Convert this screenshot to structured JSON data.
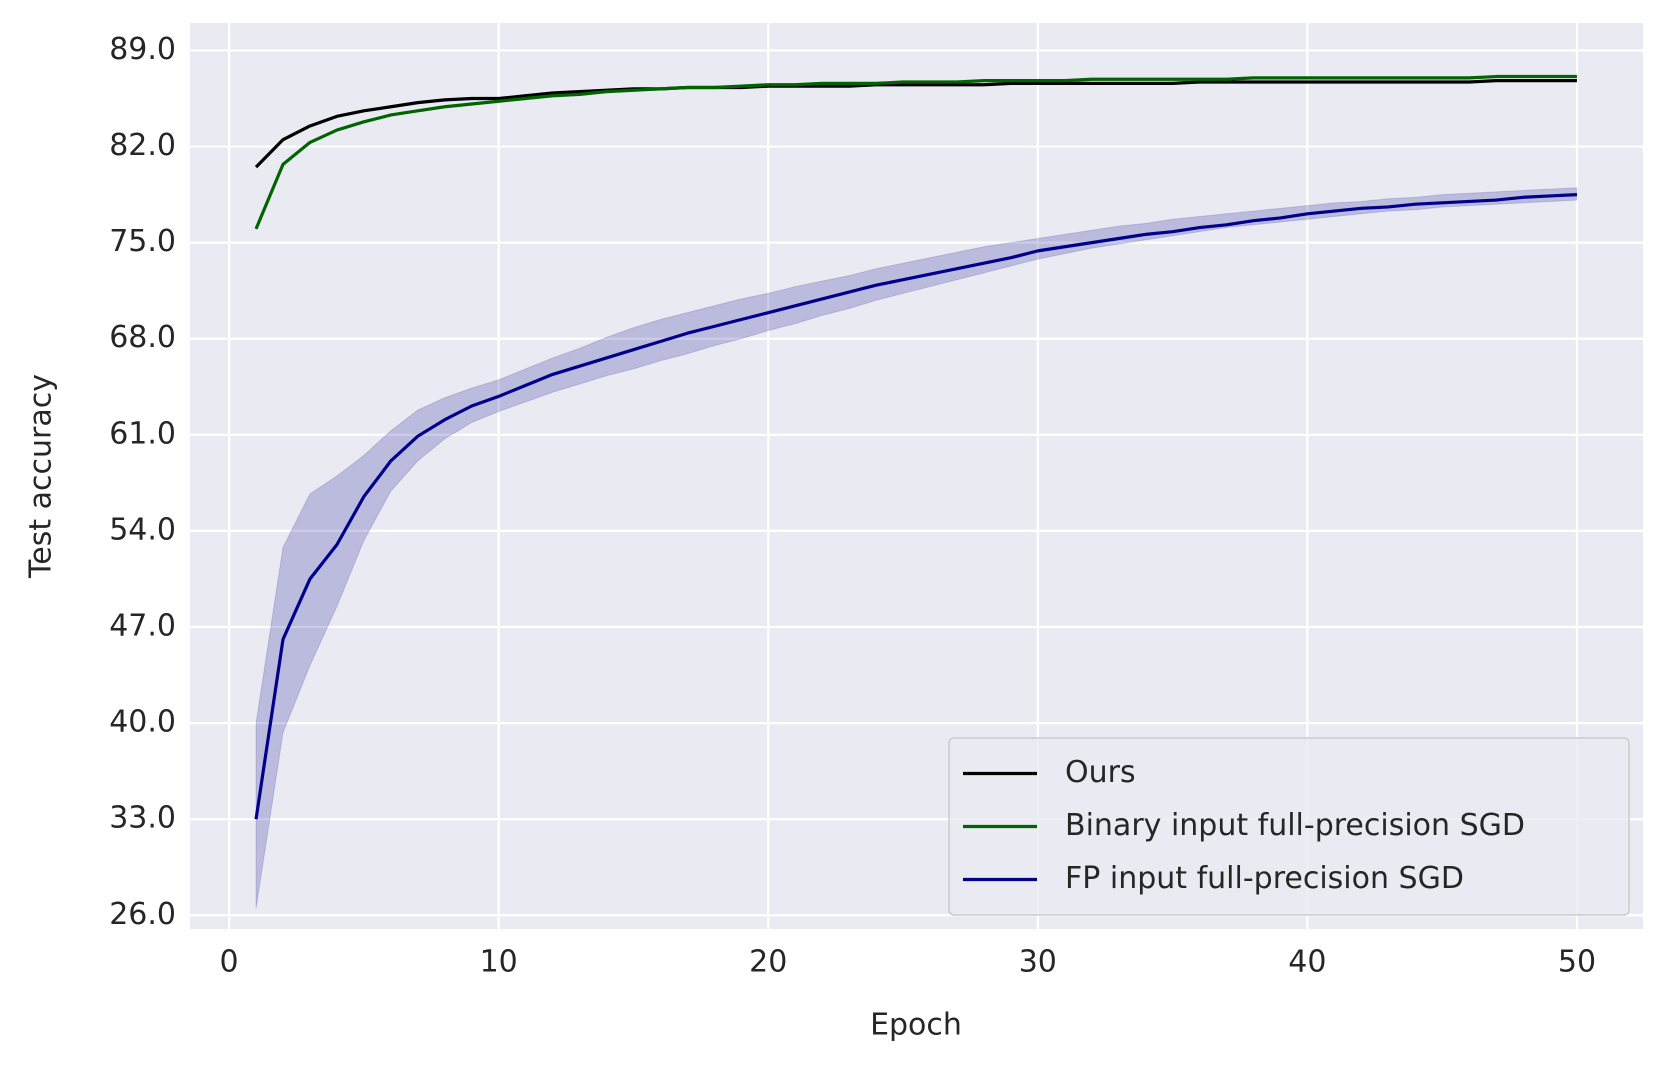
{
  "chart_data": {
    "type": "line",
    "x_label": "Epoch",
    "y_label": "Test accuracy",
    "x": [
      1,
      2,
      3,
      4,
      5,
      6,
      7,
      8,
      9,
      10,
      11,
      12,
      13,
      14,
      15,
      16,
      17,
      18,
      19,
      20,
      21,
      22,
      23,
      24,
      25,
      26,
      27,
      28,
      29,
      30,
      31,
      32,
      33,
      34,
      35,
      36,
      37,
      38,
      39,
      40,
      41,
      42,
      43,
      44,
      45,
      46,
      47,
      48,
      49,
      50
    ],
    "series": [
      {
        "name": "Ours",
        "color": "#000000",
        "values": [
          80.5,
          82.5,
          83.5,
          84.2,
          84.6,
          84.9,
          85.2,
          85.4,
          85.5,
          85.5,
          85.7,
          85.9,
          86.0,
          86.1,
          86.2,
          86.2,
          86.3,
          86.3,
          86.3,
          86.4,
          86.4,
          86.4,
          86.4,
          86.5,
          86.5,
          86.5,
          86.5,
          86.5,
          86.6,
          86.6,
          86.6,
          86.6,
          86.6,
          86.6,
          86.6,
          86.7,
          86.7,
          86.7,
          86.7,
          86.7,
          86.7,
          86.7,
          86.7,
          86.7,
          86.7,
          86.7,
          86.8,
          86.8,
          86.8,
          86.8
        ]
      },
      {
        "name": "Binary input full-precision SGD",
        "color": "#006400",
        "values": [
          76.0,
          80.7,
          82.3,
          83.2,
          83.8,
          84.3,
          84.6,
          84.9,
          85.1,
          85.3,
          85.5,
          85.7,
          85.8,
          86.0,
          86.1,
          86.2,
          86.3,
          86.3,
          86.4,
          86.5,
          86.5,
          86.6,
          86.6,
          86.6,
          86.7,
          86.7,
          86.7,
          86.8,
          86.8,
          86.8,
          86.8,
          86.9,
          86.9,
          86.9,
          86.9,
          86.9,
          86.9,
          87.0,
          87.0,
          87.0,
          87.0,
          87.0,
          87.0,
          87.0,
          87.0,
          87.0,
          87.1,
          87.1,
          87.1,
          87.1
        ]
      },
      {
        "name": "FP input full-precision SGD",
        "color": "#00008b",
        "values": [
          33.0,
          46.1,
          50.5,
          53.0,
          56.5,
          59.1,
          60.9,
          62.1,
          63.1,
          63.8,
          64.6,
          65.4,
          66.0,
          66.6,
          67.2,
          67.8,
          68.4,
          68.9,
          69.4,
          69.9,
          70.4,
          70.9,
          71.4,
          71.9,
          72.3,
          72.7,
          73.1,
          73.5,
          73.9,
          74.4,
          74.7,
          75.0,
          75.3,
          75.6,
          75.8,
          76.1,
          76.3,
          76.6,
          76.8,
          77.1,
          77.3,
          77.5,
          77.6,
          77.8,
          77.9,
          78.0,
          78.1,
          78.3,
          78.4,
          78.5
        ],
        "lower": [
          26.5,
          39.3,
          44.2,
          48.5,
          53.3,
          56.9,
          59.1,
          60.7,
          61.9,
          62.7,
          63.4,
          64.1,
          64.7,
          65.3,
          65.8,
          66.4,
          66.9,
          67.5,
          68.0,
          68.6,
          69.1,
          69.7,
          70.2,
          70.8,
          71.3,
          71.8,
          72.3,
          72.8,
          73.3,
          73.8,
          74.2,
          74.6,
          74.9,
          75.2,
          75.5,
          75.8,
          76.1,
          76.3,
          76.5,
          76.7,
          76.9,
          77.1,
          77.3,
          77.4,
          77.6,
          77.7,
          77.8,
          77.9,
          78.0,
          78.1
        ],
        "upper": [
          40.0,
          52.8,
          56.7,
          58.0,
          59.5,
          61.3,
          62.8,
          63.7,
          64.4,
          65.0,
          65.8,
          66.6,
          67.3,
          68.1,
          68.8,
          69.4,
          69.9,
          70.4,
          70.9,
          71.3,
          71.8,
          72.2,
          72.6,
          73.1,
          73.5,
          73.9,
          74.3,
          74.7,
          75.0,
          75.3,
          75.6,
          75.9,
          76.2,
          76.4,
          76.7,
          76.9,
          77.1,
          77.3,
          77.5,
          77.7,
          77.9,
          78.0,
          78.2,
          78.3,
          78.5,
          78.6,
          78.7,
          78.8,
          78.9,
          79.0
        ]
      }
    ],
    "xlim": [
      -1.45,
      52.45
    ],
    "ylim": [
      25.0,
      91.0
    ],
    "xticks": [
      0,
      10,
      20,
      30,
      40,
      50
    ],
    "yticks": [
      {
        "value": 26,
        "label": "26.0"
      },
      {
        "value": 33,
        "label": "33.0"
      },
      {
        "value": 40,
        "label": "40.0"
      },
      {
        "value": 47,
        "label": "47.0"
      },
      {
        "value": 54,
        "label": "54.0"
      },
      {
        "value": 61,
        "label": "61.0"
      },
      {
        "value": 68,
        "label": "68.0"
      },
      {
        "value": 75,
        "label": "75.0"
      },
      {
        "value": 82,
        "label": "82.0"
      },
      {
        "value": 89,
        "label": "89.0"
      }
    ],
    "grid": true,
    "legend": "lower right"
  }
}
